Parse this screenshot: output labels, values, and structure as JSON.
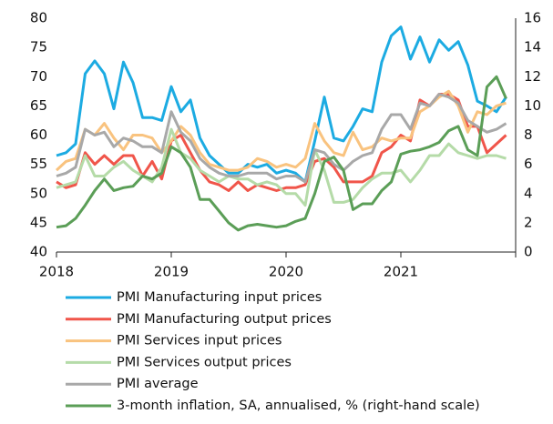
{
  "chart_data": {
    "type": "line",
    "x": [
      2018,
      2018.083,
      2018.167,
      2018.25,
      2018.333,
      2018.417,
      2018.5,
      2018.583,
      2018.667,
      2018.75,
      2018.833,
      2018.917,
      2019,
      2019.083,
      2019.167,
      2019.25,
      2019.333,
      2019.417,
      2019.5,
      2019.583,
      2019.667,
      2019.75,
      2019.833,
      2019.917,
      2020,
      2020.083,
      2020.167,
      2020.25,
      2020.333,
      2020.417,
      2020.5,
      2020.583,
      2020.667,
      2020.75,
      2020.833,
      2020.917,
      2021,
      2021.083,
      2021.167,
      2021.25,
      2021.333,
      2021.417,
      2021.5,
      2021.583,
      2021.667,
      2021.75,
      2021.833,
      2021.917
    ],
    "xlim": [
      2018,
      2022
    ],
    "xticks": [
      2018,
      2019,
      2020,
      2021
    ],
    "ylim": [
      40,
      80
    ],
    "yticks": [
      40,
      45,
      50,
      55,
      60,
      65,
      70,
      75,
      80
    ],
    "y2lim": [
      0,
      16
    ],
    "y2ticks": [
      0,
      2,
      4,
      6,
      8,
      10,
      12,
      14,
      16
    ],
    "series": [
      {
        "name": "PMI Manufacturing input prices",
        "color": "#1cabe2",
        "values": [
          56.5,
          57,
          58.5,
          70.5,
          72.7,
          70.5,
          64.5,
          72.5,
          69,
          63,
          63,
          62.5,
          68.3,
          64,
          66,
          59.5,
          56.5,
          55,
          53.5,
          53.5,
          55,
          54.5,
          55,
          53.5,
          54,
          53.5,
          52,
          59,
          66.5,
          59.5,
          59,
          61.5,
          64.5,
          64,
          72.5,
          77,
          78.5,
          73,
          76.8,
          72.5,
          76.3,
          74.5,
          76,
          72,
          65.8,
          65,
          64,
          66.5
        ]
      },
      {
        "name": "PMI Manufacturing output prices",
        "color": "#f0554a",
        "values": [
          52,
          51,
          51.5,
          57,
          55,
          56.5,
          55,
          56.5,
          56.5,
          53,
          55.5,
          52.5,
          59,
          60,
          57,
          54,
          52,
          51.5,
          50.5,
          52,
          50.5,
          51.5,
          51,
          50.5,
          51,
          51,
          51.5,
          55.5,
          56,
          54.5,
          52,
          52,
          52,
          53,
          57,
          58,
          60,
          59,
          66,
          65,
          67,
          67,
          66,
          61.5,
          61.5,
          57,
          58.5,
          60
        ]
      },
      {
        "name": "PMI Services input prices",
        "color": "#f9c37f",
        "values": [
          54,
          55.5,
          56,
          61,
          60,
          62,
          59.5,
          57.5,
          60,
          60,
          59.5,
          57,
          59,
          61.5,
          60,
          57,
          55,
          54.5,
          54,
          54,
          54.5,
          56,
          55.5,
          54.5,
          55,
          54.5,
          56,
          62,
          59,
          57,
          56.5,
          60.5,
          57.5,
          58,
          59.5,
          59,
          59.5,
          59.5,
          64,
          65,
          66.5,
          67.5,
          65,
          60.5,
          64,
          63.5,
          65,
          65.5
        ]
      },
      {
        "name": "PMI Services output prices",
        "color": "#b5dba8",
        "values": [
          51,
          51.5,
          52,
          56.5,
          53,
          53,
          54.5,
          55.5,
          54,
          53,
          52,
          54.5,
          61,
          57,
          56,
          54,
          53,
          52,
          53,
          52.5,
          52.5,
          51.5,
          52,
          51.5,
          50,
          50,
          48,
          57.5,
          54,
          48.5,
          48.5,
          49,
          51,
          52.5,
          53.5,
          53.5,
          54,
          52,
          54,
          56.5,
          56.5,
          58.5,
          57,
          56.5,
          56,
          56.5,
          56.5,
          56
        ]
      },
      {
        "name": "PMI average",
        "color": "#a8a8a8",
        "values": [
          53,
          53.5,
          54.5,
          61,
          60,
          60.5,
          58,
          59.5,
          59,
          58,
          58,
          57,
          64,
          60.5,
          59,
          56,
          54.5,
          53.5,
          53,
          53,
          53.5,
          53.5,
          53.5,
          52.5,
          53,
          53,
          52,
          57.5,
          57,
          55,
          54,
          55.5,
          56.5,
          57,
          61,
          63.5,
          63.5,
          61,
          65.5,
          65,
          67,
          66.5,
          65.5,
          62.5,
          61.5,
          60.5,
          61,
          62
        ]
      },
      {
        "name": "3-month inflation, SA, annualised, % (right-hand scale)",
        "color": "#5b9e57",
        "axis": "y2",
        "values": [
          1.7,
          1.8,
          2.3,
          3.2,
          4.2,
          5,
          4.2,
          4.4,
          4.5,
          5.2,
          5,
          5.4,
          7.2,
          6.8,
          5.8,
          3.6,
          3.6,
          2.8,
          2,
          1.5,
          1.8,
          1.9,
          1.8,
          1.7,
          1.8,
          2.1,
          2.3,
          4,
          6.2,
          6.5,
          5.6,
          2.9,
          3.3,
          3.3,
          4.2,
          4.8,
          6.7,
          6.9,
          7,
          7.2,
          7.5,
          8.3,
          8.6,
          7,
          6.6,
          11.3,
          12,
          10.5
        ]
      }
    ]
  }
}
